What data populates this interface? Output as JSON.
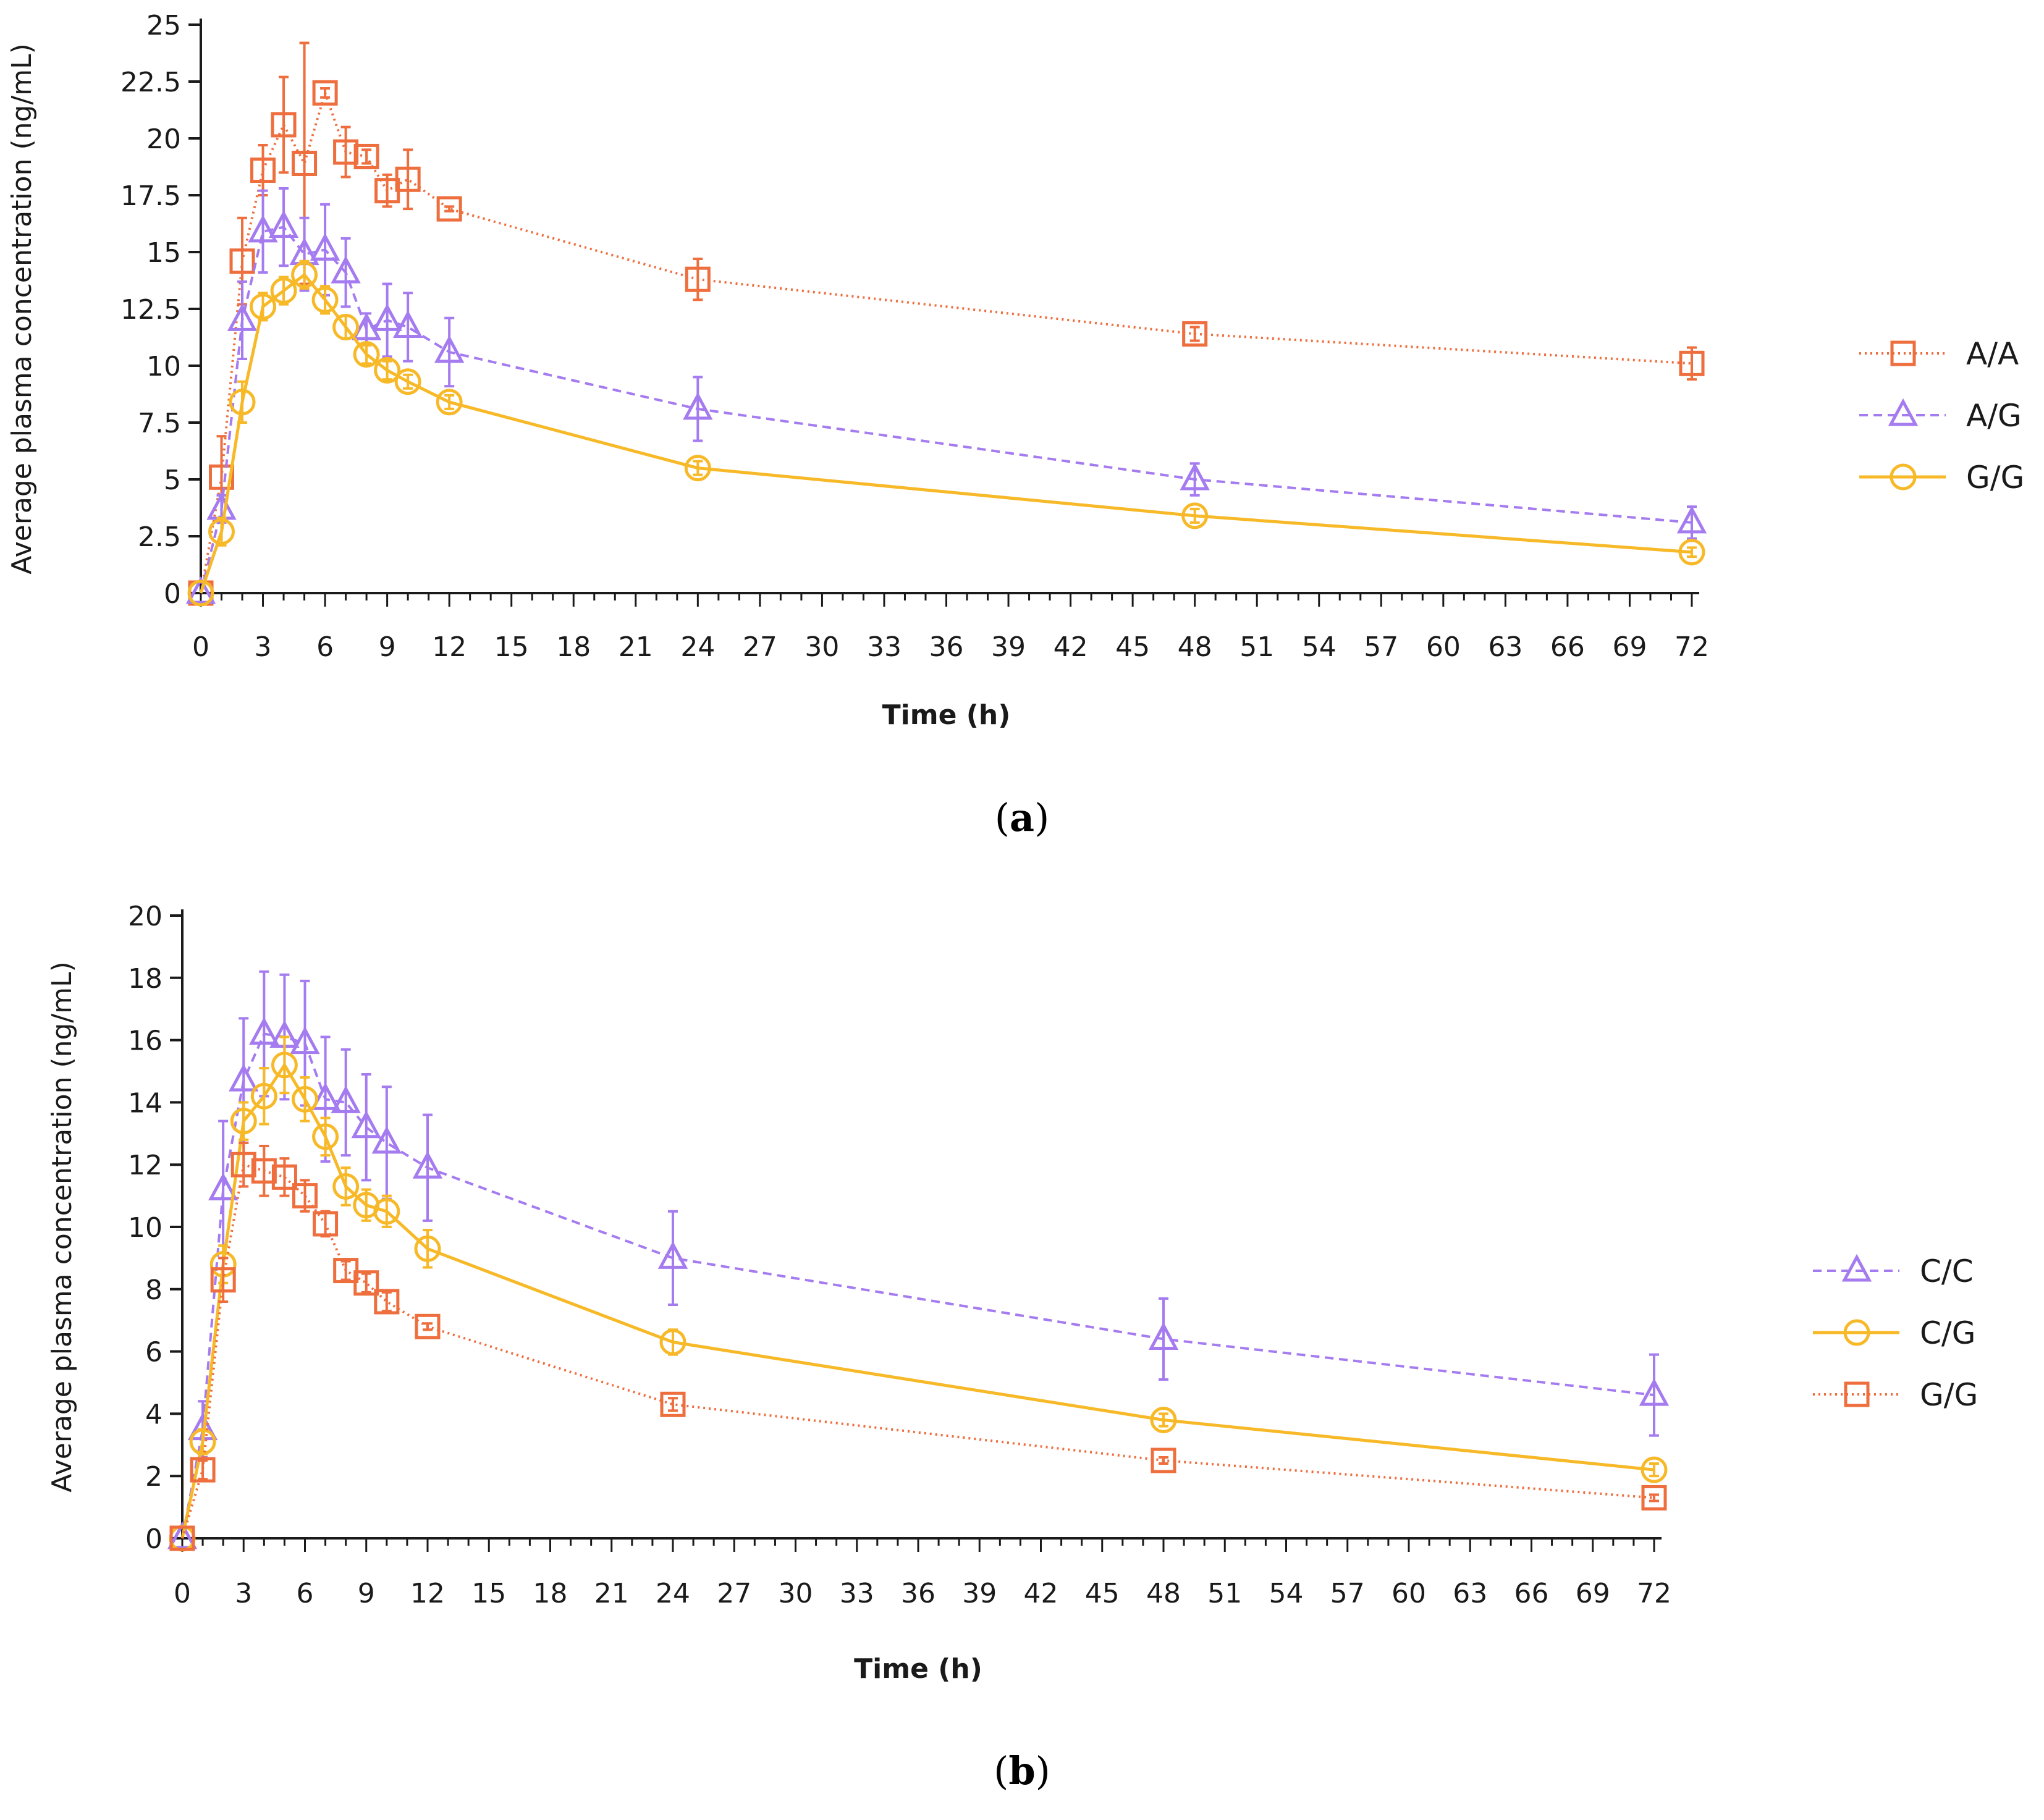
{
  "colors": {
    "orange": "#EE6E3E",
    "purple": "#A57BF0",
    "yellow": "#F7B928",
    "axis": "#1a1a1a"
  },
  "chart_data": [
    {
      "panel": "a",
      "panel_label": "a",
      "type": "line",
      "title": "",
      "xlabel": "Time (h)",
      "ylabel": "Average plasma concentration (ng/mL)",
      "xlim": [
        0,
        72
      ],
      "ylim": [
        0,
        25
      ],
      "xticks": [
        "0",
        "3",
        "6",
        "9",
        "12",
        "15",
        "18",
        "21",
        "24",
        "27",
        "30",
        "33",
        "36",
        "39",
        "42",
        "45",
        "48",
        "51",
        "54",
        "57",
        "60",
        "63",
        "66",
        "69",
        "72"
      ],
      "yticks": [
        "0",
        "2.5",
        "5",
        "7.5",
        "10",
        "12.5",
        "15",
        "17.5",
        "20",
        "22.5",
        "25"
      ],
      "legend_position": "right",
      "series": [
        {
          "name": "A/A",
          "color": "#EE6E3E",
          "marker": "square",
          "line": "dotted",
          "x": [
            0,
            1,
            2,
            3,
            4,
            5,
            6,
            7,
            8,
            9,
            10,
            12,
            24,
            48,
            72
          ],
          "y": [
            0,
            5.1,
            14.6,
            18.6,
            20.6,
            18.9,
            22.0,
            19.4,
            19.2,
            17.7,
            18.2,
            16.9,
            13.8,
            11.4,
            10.1
          ],
          "err": [
            0,
            1.8,
            1.9,
            1.1,
            2.1,
            5.3,
            0.2,
            1.1,
            0.3,
            0.7,
            1.3,
            0.1,
            0.9,
            0.3,
            0.7
          ]
        },
        {
          "name": "A/G",
          "color": "#A57BF0",
          "marker": "triangle",
          "line": "dashed",
          "x": [
            0,
            1,
            2,
            3,
            4,
            5,
            6,
            7,
            8,
            9,
            10,
            12,
            24,
            48,
            72
          ],
          "y": [
            0,
            3.7,
            12.0,
            15.9,
            16.1,
            14.9,
            15.1,
            14.1,
            11.6,
            12.0,
            11.7,
            10.6,
            8.1,
            5.0,
            3.1
          ],
          "err": [
            0,
            0.6,
            1.7,
            1.8,
            1.7,
            1.6,
            2.0,
            1.5,
            0.7,
            1.6,
            1.5,
            1.5,
            1.4,
            0.7,
            0.7
          ]
        },
        {
          "name": "G/G",
          "color": "#F7B928",
          "marker": "circle",
          "line": "solid",
          "x": [
            0,
            1,
            2,
            3,
            4,
            5,
            6,
            7,
            8,
            9,
            10,
            12,
            24,
            48,
            72
          ],
          "y": [
            0,
            2.7,
            8.4,
            12.6,
            13.3,
            14.0,
            12.9,
            11.7,
            10.5,
            9.8,
            9.3,
            8.4,
            5.5,
            3.4,
            1.8
          ],
          "err": [
            0,
            0.6,
            0.9,
            0.6,
            0.6,
            0.6,
            0.6,
            0.5,
            0.4,
            0.4,
            0.3,
            0.3,
            0.3,
            0.3,
            0.2
          ]
        }
      ]
    },
    {
      "panel": "b",
      "panel_label": "b",
      "type": "line",
      "title": "",
      "xlabel": "Time (h)",
      "ylabel": "Average plasma concentration (ng/mL)",
      "xlim": [
        0,
        72
      ],
      "ylim": [
        0,
        20
      ],
      "xticks": [
        "0",
        "3",
        "6",
        "9",
        "12",
        "15",
        "18",
        "21",
        "24",
        "27",
        "30",
        "33",
        "36",
        "39",
        "42",
        "45",
        "48",
        "51",
        "54",
        "57",
        "60",
        "63",
        "66",
        "69",
        "72"
      ],
      "yticks": [
        "0",
        "2",
        "4",
        "6",
        "8",
        "10",
        "12",
        "14",
        "16",
        "18",
        "20"
      ],
      "legend_position": "right",
      "series": [
        {
          "name": "C/C",
          "color": "#A57BF0",
          "marker": "triangle",
          "line": "dashed",
          "x": [
            0,
            1,
            2,
            3,
            4,
            5,
            6,
            7,
            8,
            9,
            10,
            12,
            24,
            48,
            72
          ],
          "y": [
            0,
            3.5,
            11.2,
            14.7,
            16.2,
            16.1,
            15.9,
            14.1,
            14.0,
            13.2,
            12.7,
            11.9,
            9.0,
            6.4,
            4.6
          ],
          "err": [
            0,
            0.9,
            2.2,
            2.0,
            2.0,
            2.0,
            2.0,
            2.0,
            1.7,
            1.7,
            1.8,
            1.7,
            1.5,
            1.3,
            1.3
          ]
        },
        {
          "name": "C/G",
          "color": "#F7B928",
          "marker": "circle",
          "line": "solid",
          "x": [
            0,
            1,
            2,
            3,
            4,
            5,
            6,
            7,
            8,
            9,
            10,
            12,
            24,
            48,
            72
          ],
          "y": [
            0,
            3.1,
            8.8,
            13.4,
            14.2,
            15.2,
            14.1,
            12.9,
            11.3,
            10.7,
            10.5,
            9.3,
            6.3,
            3.8,
            2.2
          ],
          "err": [
            0,
            0.4,
            0.6,
            0.6,
            0.9,
            0.9,
            0.7,
            0.6,
            0.6,
            0.5,
            0.5,
            0.6,
            0.4,
            0.2,
            0.2
          ]
        },
        {
          "name": "G/G",
          "color": "#EE6E3E",
          "marker": "square",
          "line": "dotted",
          "x": [
            0,
            1,
            2,
            3,
            4,
            5,
            6,
            7,
            8,
            9,
            10,
            12,
            24,
            48,
            72
          ],
          "y": [
            0,
            2.2,
            8.3,
            12.0,
            11.8,
            11.6,
            11.0,
            10.1,
            8.6,
            8.2,
            7.6,
            6.8,
            4.3,
            2.5,
            1.3
          ],
          "err": [
            0,
            0.3,
            0.7,
            0.7,
            0.8,
            0.6,
            0.5,
            0.4,
            0.3,
            0.3,
            0.3,
            0.1,
            0.2,
            0.1,
            0.1
          ]
        }
      ]
    }
  ]
}
